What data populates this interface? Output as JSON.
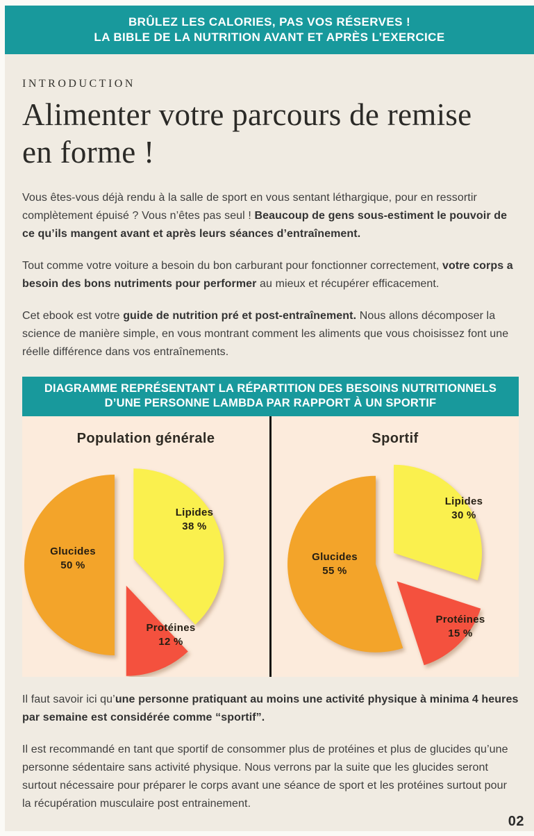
{
  "header": {
    "line1": "BRÛLEZ LES CALORIES, PAS VOS RÉSERVES !",
    "line2": "LA BIBLE DE LA NUTRITION AVANT ET APRÈS L’EXERCICE"
  },
  "intro": {
    "kicker": "INTRODUCTION",
    "title": "Alimenter votre parcours de remise en forme !"
  },
  "paragraphs": {
    "p1": [
      {
        "text": "Vous êtes-vous déjà rendu à la salle de sport en vous sentant léthargique, pour en ressortir complètement épuisé ? Vous n’êtes pas seul ! ",
        "bold": false
      },
      {
        "text": "Beaucoup de gens sous-estiment le pouvoir de ce qu’ils mangent avant et après leurs séances d’entraînement.",
        "bold": true
      }
    ],
    "p2": [
      {
        "text": "Tout comme votre voiture a besoin du bon carburant pour fonctionner correctement, ",
        "bold": false
      },
      {
        "text": "votre corps a besoin des bons nutriments pour performer",
        "bold": true
      },
      {
        "text": " au mieux et récupérer efficacement.",
        "bold": false
      }
    ],
    "p3": [
      {
        "text": "Cet ebook est votre ",
        "bold": false
      },
      {
        "text": "guide de nutrition pré et post-entraînement.",
        "bold": true
      },
      {
        "text": " Nous allons décomposer la science de manière simple, en vous montrant comment les aliments que vous choisissez font une réelle différence dans vos entraînements.",
        "bold": false
      }
    ],
    "p4": [
      {
        "text": "Il faut savoir ici qu’",
        "bold": false
      },
      {
        "text": "une personne pratiquant au moins une activité physique à minima 4 heures par semaine est considérée comme “sportif”.",
        "bold": true
      }
    ],
    "p5": [
      {
        "text": "Il est recommandé en tant que sportif de consommer plus de protéines et plus de glucides qu’une personne sédentaire sans activité physique. Nous verrons par la suite que les glucides seront surtout nécessaire pour préparer le corps avant une séance de sport et les protéines surtout pour la récupération musculaire post entrainement.",
        "bold": false
      }
    ]
  },
  "diagram": {
    "banner_line1": "DIAGRAMME REPRÉSENTANT LA RÉPARTITION DES BESOINS NUTRITIONNELS",
    "banner_line2": "D’UNE PERSONNE LAMBDA PAR RAPPORT À UN SPORTIF"
  },
  "chart_data": [
    {
      "type": "pie",
      "title": "Population générale",
      "unit": "%",
      "style": "exploded",
      "slices": [
        {
          "label": "Lipides",
          "value": 38,
          "color": "#FAF04E"
        },
        {
          "label": "Protéines",
          "value": 12,
          "color": "#F4513E"
        },
        {
          "label": "Glucides",
          "value": 50,
          "color": "#F3A42A"
        }
      ]
    },
    {
      "type": "pie",
      "title": "Sportif",
      "unit": "%",
      "style": "exploded",
      "slices": [
        {
          "label": "Lipides",
          "value": 30,
          "color": "#FAF04E"
        },
        {
          "label": "Protéines",
          "value": 15,
          "color": "#F4513E"
        },
        {
          "label": "Glucides",
          "value": 55,
          "color": "#F3A42A"
        }
      ]
    }
  ],
  "page": {
    "number": "02"
  },
  "colors": {
    "teal": "#18999C",
    "cream": "#F0EBE2",
    "peach": "#FCEBDC",
    "orange": "#F3A42A",
    "yellow": "#FAF04E",
    "red": "#F4513E",
    "text": "#3D3D3D",
    "title": "#2B2A27"
  }
}
